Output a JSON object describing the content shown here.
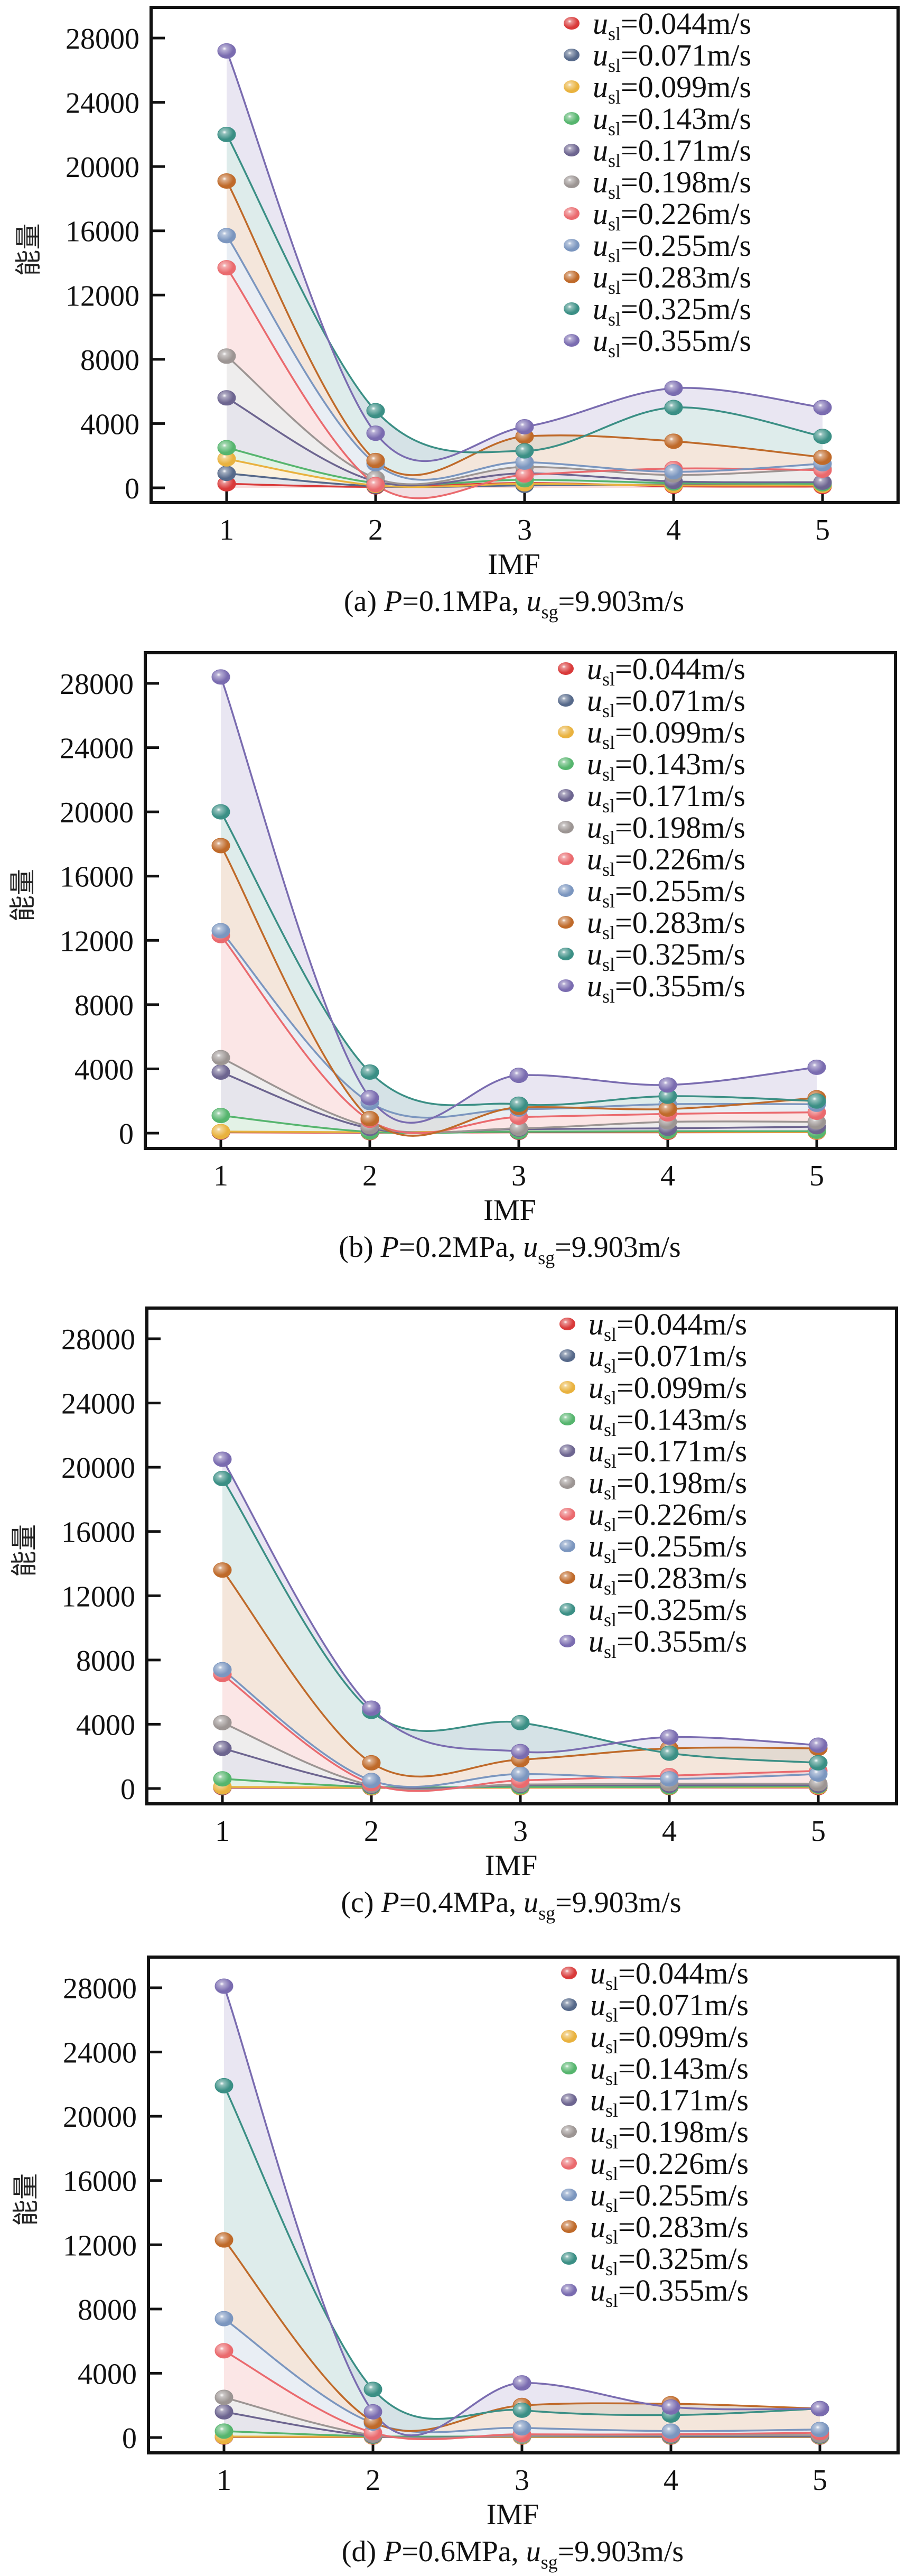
{
  "figure": {
    "y_axis_label": "能量",
    "x_axis_label": "IMF",
    "legend_prefix": "u",
    "legend_subscript": "sl"
  },
  "chart_data": [
    {
      "type": "line",
      "panel": "a",
      "title": "(a) P=0.1MPa, u_sg=9.903m/s",
      "caption_parts": {
        "prefix": "(a) ",
        "p_symbol": "P",
        "p_value": "=0.1MPa, ",
        "u_symbol": "u",
        "u_sub": "sg",
        "u_value": "=9.903m/s"
      },
      "xlabel": "IMF",
      "ylabel": "能量",
      "x": [
        1,
        2,
        3,
        4,
        5
      ],
      "xticks": [
        "1",
        "2",
        "3",
        "4",
        "5"
      ],
      "yticks": [
        "0",
        "4000",
        "8000",
        "12000",
        "16000",
        "20000",
        "24000",
        "28000"
      ],
      "ylim": [
        -1000,
        29800
      ],
      "legend_position": "top-right",
      "grid": false,
      "series": [
        {
          "name": "u_sl=0.044m/s",
          "label": "=0.044m/s",
          "color": "#d93a3a",
          "values": [
            250,
            60,
            300,
            100,
            80
          ]
        },
        {
          "name": "u_sl=0.071m/s",
          "label": "=0.071m/s",
          "color": "#56698a",
          "values": [
            900,
            100,
            150,
            200,
            300
          ]
        },
        {
          "name": "u_sl=0.099m/s",
          "label": "=0.099m/s",
          "color": "#e9b23e",
          "values": [
            1800,
            150,
            250,
            150,
            150
          ]
        },
        {
          "name": "u_sl=0.143m/s",
          "label": "=0.143m/s",
          "color": "#56b56e",
          "values": [
            2500,
            300,
            500,
            300,
            250
          ]
        },
        {
          "name": "u_sl=0.171m/s",
          "label": "=0.171m/s",
          "color": "#6d6590",
          "values": [
            5600,
            400,
            900,
            400,
            350
          ]
        },
        {
          "name": "u_sl=0.198m/s",
          "label": "=0.198m/s",
          "color": "#9c9593",
          "values": [
            8200,
            600,
            1300,
            800,
            1200
          ]
        },
        {
          "name": "u_sl=0.226m/s",
          "label": "=0.226m/s",
          "color": "#ea6a6e",
          "values": [
            13700,
            200,
            800,
            1200,
            1100
          ]
        },
        {
          "name": "u_sl=0.255m/s",
          "label": "=0.255m/s",
          "color": "#7b96bf",
          "values": [
            15700,
            1500,
            1600,
            1000,
            1500
          ]
        },
        {
          "name": "u_sl=0.283m/s",
          "label": "=0.283m/s",
          "color": "#bf6a2a",
          "values": [
            19100,
            1700,
            3200,
            2900,
            1900
          ]
        },
        {
          "name": "u_sl=0.325m/s",
          "label": "=0.325m/s",
          "color": "#3b8f85",
          "values": [
            22000,
            4800,
            2300,
            5000,
            3200
          ]
        },
        {
          "name": "u_sl=0.355m/s",
          "label": "=0.355m/s",
          "color": "#7a6cb0",
          "values": [
            27200,
            3400,
            3800,
            6200,
            5000
          ]
        }
      ]
    },
    {
      "type": "line",
      "panel": "b",
      "title": "(b) P=0.2MPa, u_sg=9.903m/s",
      "caption_parts": {
        "prefix": "(b) ",
        "p_symbol": "P",
        "p_value": "=0.2MPa, ",
        "u_symbol": "u",
        "u_sub": "sg",
        "u_value": "=9.903m/s"
      },
      "xlabel": "IMF",
      "ylabel": "能量",
      "x": [
        1,
        2,
        3,
        4,
        5
      ],
      "xticks": [
        "1",
        "2",
        "3",
        "4",
        "5"
      ],
      "yticks": [
        "0",
        "4000",
        "8000",
        "12000",
        "16000",
        "20000",
        "24000",
        "28000"
      ],
      "ylim": [
        -1000,
        30000
      ],
      "legend_position": "top-right",
      "grid": false,
      "series": [
        {
          "name": "u_sl=0.044m/s",
          "label": "=0.044m/s",
          "color": "#d93a3a",
          "values": [
            50,
            30,
            50,
            50,
            60
          ]
        },
        {
          "name": "u_sl=0.071m/s",
          "label": "=0.071m/s",
          "color": "#56698a",
          "values": [
            80,
            50,
            80,
            100,
            100
          ]
        },
        {
          "name": "u_sl=0.099m/s",
          "label": "=0.099m/s",
          "color": "#e9b23e",
          "values": [
            100,
            60,
            100,
            100,
            80
          ]
        },
        {
          "name": "u_sl=0.143m/s",
          "label": "=0.143m/s",
          "color": "#56b56e",
          "values": [
            1100,
            80,
            100,
            120,
            120
          ]
        },
        {
          "name": "u_sl=0.171m/s",
          "label": "=0.171m/s",
          "color": "#6d6590",
          "values": [
            3800,
            300,
            250,
            300,
            400
          ]
        },
        {
          "name": "u_sl=0.198m/s",
          "label": "=0.198m/s",
          "color": "#9c9593",
          "values": [
            4700,
            400,
            300,
            700,
            700
          ]
        },
        {
          "name": "u_sl=0.226m/s",
          "label": "=0.226m/s",
          "color": "#ea6a6e",
          "values": [
            12300,
            800,
            1000,
            1200,
            1300
          ]
        },
        {
          "name": "u_sl=0.255m/s",
          "label": "=0.255m/s",
          "color": "#7b96bf",
          "values": [
            12600,
            1900,
            1500,
            1800,
            1800
          ]
        },
        {
          "name": "u_sl=0.283m/s",
          "label": "=0.283m/s",
          "color": "#bf6a2a",
          "values": [
            17900,
            900,
            1600,
            1500,
            2200
          ]
        },
        {
          "name": "u_sl=0.325m/s",
          "label": "=0.325m/s",
          "color": "#3b8f85",
          "values": [
            20000,
            3800,
            1800,
            2300,
            2000
          ]
        },
        {
          "name": "u_sl=0.355m/s",
          "label": "=0.355m/s",
          "color": "#7a6cb0",
          "values": [
            28400,
            2200,
            3600,
            3000,
            4100
          ]
        }
      ]
    },
    {
      "type": "line",
      "panel": "c",
      "title": "(c) P=0.4MPa, u_sg=9.903m/s",
      "caption_parts": {
        "prefix": "(c) ",
        "p_symbol": "P",
        "p_value": "=0.4MPa, ",
        "u_symbol": "u",
        "u_sub": "sg",
        "u_value": "=9.903m/s"
      },
      "xlabel": "IMF",
      "ylabel": "能量",
      "x": [
        1,
        2,
        3,
        4,
        5
      ],
      "xticks": [
        "1",
        "2",
        "3",
        "4",
        "5"
      ],
      "yticks": [
        "0",
        "4000",
        "8000",
        "12000",
        "16000",
        "20000",
        "24000",
        "28000"
      ],
      "ylim": [
        -1000,
        30000
      ],
      "legend_position": "top-right",
      "grid": false,
      "series": [
        {
          "name": "u_sl=0.044m/s",
          "label": "=0.044m/s",
          "color": "#d93a3a",
          "values": [
            50,
            40,
            50,
            60,
            60
          ]
        },
        {
          "name": "u_sl=0.071m/s",
          "label": "=0.071m/s",
          "color": "#56698a",
          "values": [
            80,
            60,
            80,
            80,
            100
          ]
        },
        {
          "name": "u_sl=0.099m/s",
          "label": "=0.099m/s",
          "color": "#e9b23e",
          "values": [
            100,
            60,
            60,
            80,
            100
          ]
        },
        {
          "name": "u_sl=0.143m/s",
          "label": "=0.143m/s",
          "color": "#56b56e",
          "values": [
            600,
            100,
            100,
            100,
            150
          ]
        },
        {
          "name": "u_sl=0.171m/s",
          "label": "=0.171m/s",
          "color": "#6d6590",
          "values": [
            2500,
            150,
            200,
            200,
            200
          ]
        },
        {
          "name": "u_sl=0.198m/s",
          "label": "=0.198m/s",
          "color": "#9c9593",
          "values": [
            4100,
            200,
            250,
            300,
            300
          ]
        },
        {
          "name": "u_sl=0.226m/s",
          "label": "=0.226m/s",
          "color": "#ea6a6e",
          "values": [
            7100,
            300,
            500,
            800,
            1100
          ]
        },
        {
          "name": "u_sl=0.255m/s",
          "label": "=0.255m/s",
          "color": "#7b96bf",
          "values": [
            7400,
            500,
            900,
            600,
            900
          ]
        },
        {
          "name": "u_sl=0.283m/s",
          "label": "=0.283m/s",
          "color": "#bf6a2a",
          "values": [
            13600,
            1600,
            1800,
            2500,
            2500
          ]
        },
        {
          "name": "u_sl=0.325m/s",
          "label": "=0.325m/s",
          "color": "#3b8f85",
          "values": [
            19300,
            4800,
            4100,
            2200,
            1600
          ]
        },
        {
          "name": "u_sl=0.355m/s",
          "label": "=0.355m/s",
          "color": "#7a6cb0",
          "values": [
            20500,
            5000,
            2300,
            3200,
            2700
          ]
        }
      ]
    },
    {
      "type": "line",
      "panel": "d",
      "title": "(d) P=0.6MPa, u_sg=9.903m/s",
      "caption_parts": {
        "prefix": "(d) ",
        "p_symbol": "P",
        "p_value": "=0.6MPa, ",
        "u_symbol": "u",
        "u_sub": "sg",
        "u_value": "=9.903m/s"
      },
      "xlabel": "IMF",
      "ylabel": "能量",
      "x": [
        1,
        2,
        3,
        4,
        5
      ],
      "xticks": [
        "1",
        "2",
        "3",
        "4",
        "5"
      ],
      "yticks": [
        "0",
        "4000",
        "8000",
        "12000",
        "16000",
        "20000",
        "24000",
        "28000"
      ],
      "ylim": [
        -1000,
        30000
      ],
      "legend_position": "top-right",
      "grid": false,
      "series": [
        {
          "name": "u_sl=0.044m/s",
          "label": "=0.044m/s",
          "color": "#d93a3a",
          "values": [
            30,
            30,
            30,
            30,
            30
          ]
        },
        {
          "name": "u_sl=0.071m/s",
          "label": "=0.071m/s",
          "color": "#56698a",
          "values": [
            50,
            50,
            50,
            50,
            50
          ]
        },
        {
          "name": "u_sl=0.099m/s",
          "label": "=0.099m/s",
          "color": "#e9b23e",
          "values": [
            60,
            50,
            50,
            60,
            60
          ]
        },
        {
          "name": "u_sl=0.143m/s",
          "label": "=0.143m/s",
          "color": "#56b56e",
          "values": [
            400,
            80,
            80,
            80,
            80
          ]
        },
        {
          "name": "u_sl=0.171m/s",
          "label": "=0.171m/s",
          "color": "#6d6590",
          "values": [
            1600,
            100,
            100,
            100,
            100
          ]
        },
        {
          "name": "u_sl=0.198m/s",
          "label": "=0.198m/s",
          "color": "#9c9593",
          "values": [
            2500,
            150,
            100,
            150,
            150
          ]
        },
        {
          "name": "u_sl=0.226m/s",
          "label": "=0.226m/s",
          "color": "#ea6a6e",
          "values": [
            5400,
            300,
            200,
            200,
            300
          ]
        },
        {
          "name": "u_sl=0.255m/s",
          "label": "=0.255m/s",
          "color": "#7b96bf",
          "values": [
            7400,
            900,
            600,
            400,
            500
          ]
        },
        {
          "name": "u_sl=0.283m/s",
          "label": "=0.283m/s",
          "color": "#bf6a2a",
          "values": [
            12300,
            1000,
            2000,
            2100,
            1800
          ]
        },
        {
          "name": "u_sl=0.325m/s",
          "label": "=0.325m/s",
          "color": "#3b8f85",
          "values": [
            21900,
            3000,
            1700,
            1400,
            1800
          ]
        },
        {
          "name": "u_sl=0.355m/s",
          "label": "=0.355m/s",
          "color": "#7a6cb0",
          "values": [
            28100,
            1600,
            3400,
            1900,
            1800
          ]
        }
      ]
    }
  ]
}
